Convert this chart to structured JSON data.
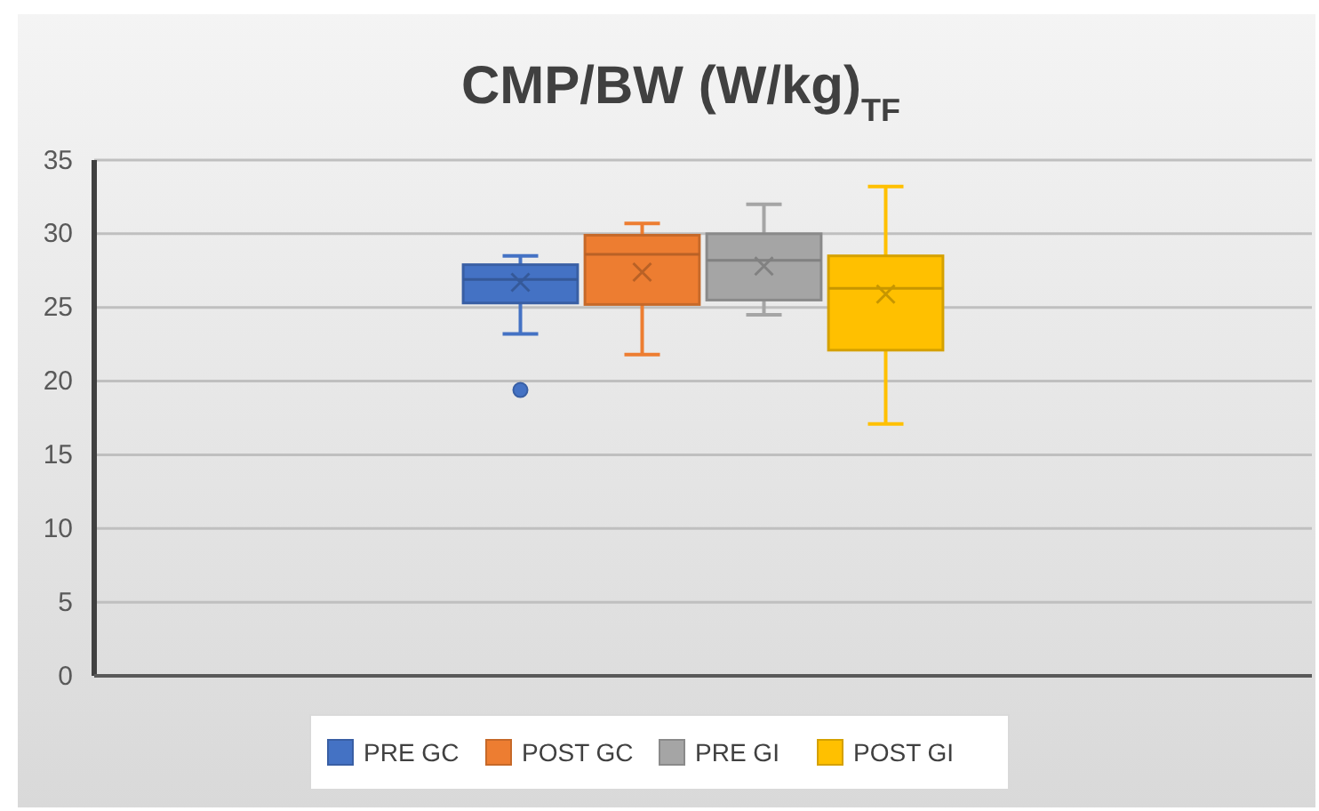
{
  "chart_data": {
    "type": "box",
    "title": "CMP/BW (W/kg)$_{TF}$",
    "categories": [
      null
    ],
    "ylim": [
      0,
      35
    ],
    "yticks": [
      0,
      5,
      10,
      15,
      20,
      25,
      30,
      35
    ],
    "grid": "y",
    "legend": "bottom",
    "series": [
      {
        "name": "PRE GC",
        "color": "#4472c4",
        "boxes": [
          {
            "low": 23.2,
            "q1": 25.3,
            "median": 26.9,
            "q3": 27.9,
            "high": 28.5,
            "mean": 26.7,
            "outliers": [
              19.4
            ]
          }
        ]
      },
      {
        "name": "POST GC",
        "color": "#ed7d31",
        "boxes": [
          {
            "low": 21.8,
            "q1": 25.2,
            "median": 28.6,
            "q3": 29.9,
            "high": 30.7,
            "mean": 27.4
          }
        ]
      },
      {
        "name": "PRE GI",
        "color": "#a5a5a5",
        "boxes": [
          {
            "low": 24.5,
            "q1": 25.5,
            "median": 28.2,
            "q3": 30.0,
            "high": 32.0,
            "mean": 27.8
          }
        ]
      },
      {
        "name": "POST GI",
        "color": "#ffc000",
        "boxes": [
          {
            "low": 17.1,
            "q1": 22.1,
            "median": 26.3,
            "q3": 28.5,
            "high": 33.2,
            "mean": 25.9
          }
        ]
      }
    ]
  }
}
